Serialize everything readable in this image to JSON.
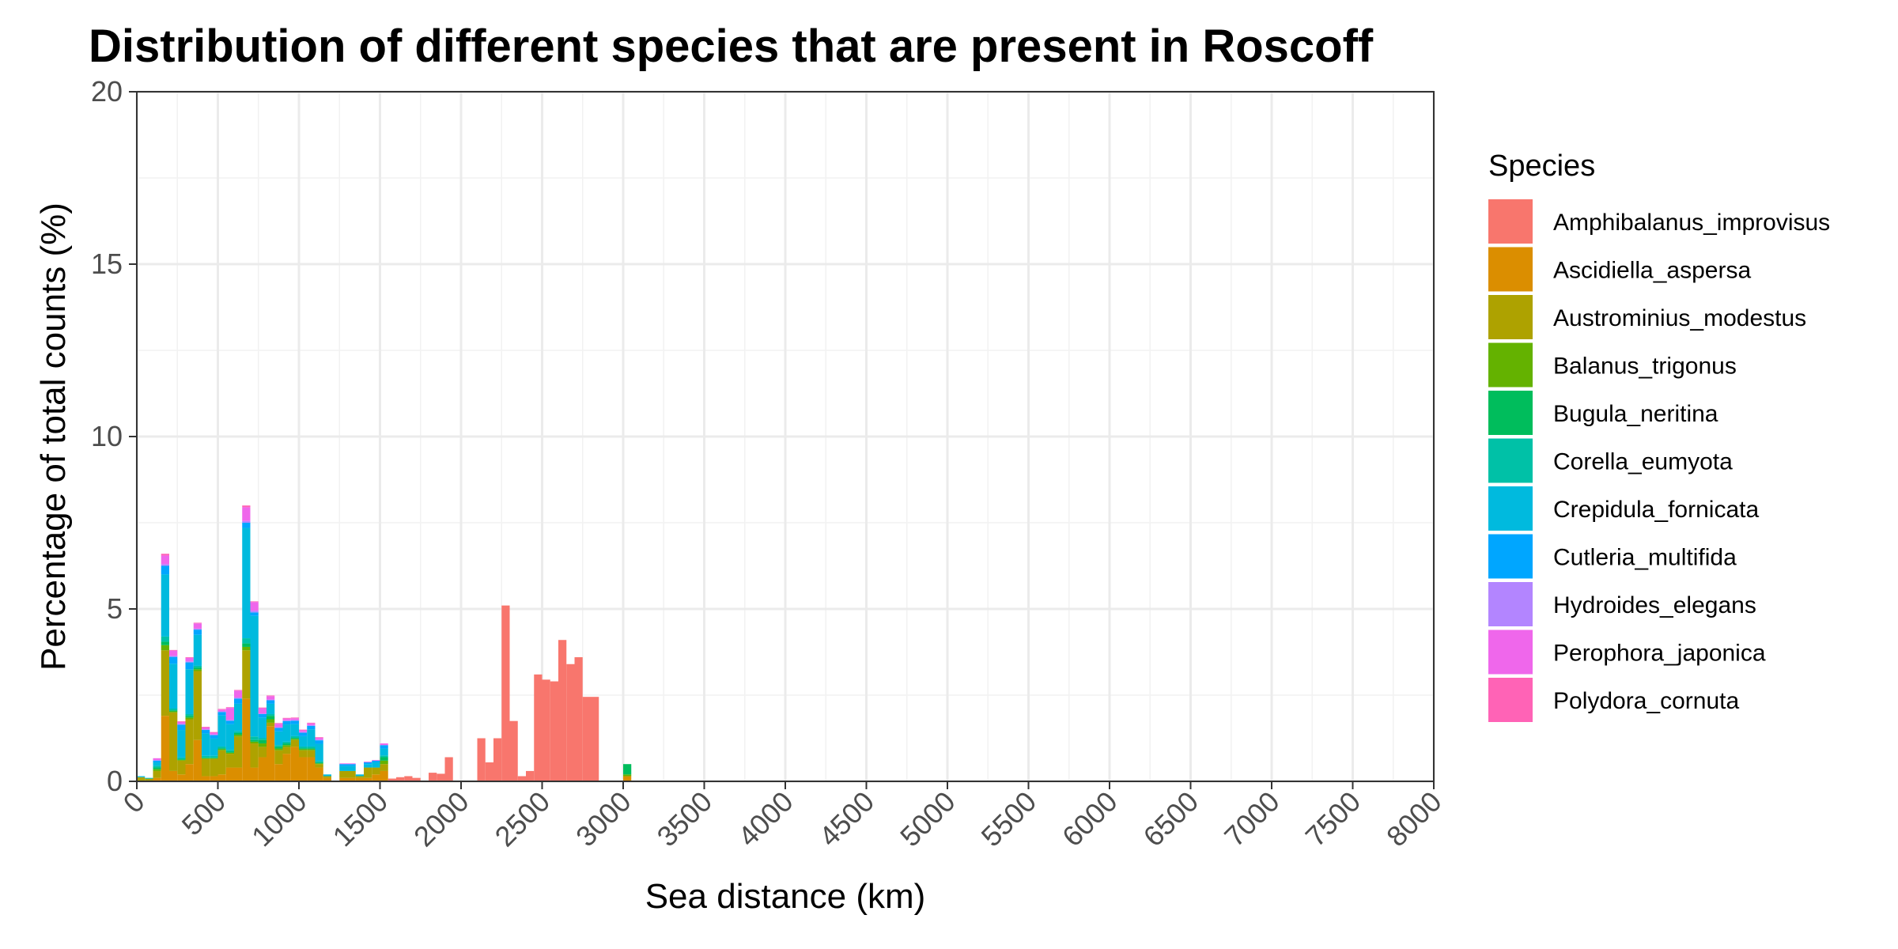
{
  "chart_data": {
    "type": "bar",
    "stacked": true,
    "title": "Distribution of different species that are present in Roscoff",
    "xlabel": "Sea distance (km)",
    "ylabel": "Percentage of total counts (%)",
    "xlim": [
      0,
      8000
    ],
    "ylim": [
      0,
      20
    ],
    "bin_width": 50,
    "grid": true,
    "legend_title": "Species",
    "legend_position": "right",
    "x_ticks": [
      "0",
      "500",
      "1000",
      "1500",
      "2000",
      "2500",
      "3000",
      "3500",
      "4000",
      "4500",
      "5000",
      "5500",
      "6000",
      "6500",
      "7000",
      "7500",
      "8000"
    ],
    "y_ticks": [
      "0",
      "5",
      "10",
      "15",
      "20"
    ],
    "x": [
      25,
      75,
      125,
      175,
      225,
      275,
      325,
      375,
      425,
      475,
      525,
      575,
      625,
      675,
      725,
      775,
      825,
      875,
      925,
      975,
      1025,
      1075,
      1125,
      1175,
      1275,
      1325,
      1375,
      1425,
      1475,
      1525,
      1575,
      1625,
      1675,
      1725,
      1825,
      1875,
      1925,
      2125,
      2175,
      2225,
      2275,
      2325,
      2375,
      2425,
      2475,
      2525,
      2575,
      2625,
      2675,
      2725,
      2775,
      2825,
      3025
    ],
    "series": [
      {
        "name": "Amphibalanus_improvisus",
        "color": "#F8766D",
        "values": [
          0,
          0,
          0,
          0,
          0,
          0,
          0,
          0,
          0,
          0,
          0,
          0,
          0,
          0,
          0,
          0,
          0,
          0,
          0,
          0,
          0,
          0,
          0,
          0,
          0,
          0,
          0,
          0,
          0,
          0,
          0.08,
          0.12,
          0.15,
          0.1,
          0.25,
          0.22,
          0.7,
          1.25,
          0.55,
          1.25,
          5.1,
          1.75,
          0.15,
          0.3,
          3.1,
          2.95,
          2.9,
          4.1,
          3.4,
          3.6,
          2.45,
          2.45,
          0
        ]
      },
      {
        "name": "Ascidiella_aspersa",
        "color": "#DB8E00",
        "values": [
          0.02,
          0.02,
          0.1,
          1.9,
          0.3,
          0.2,
          0.5,
          1.2,
          0.15,
          0.15,
          0.2,
          0.4,
          0.4,
          2.4,
          0.4,
          0.7,
          1.6,
          0.5,
          0.8,
          1.0,
          0.7,
          0.7,
          0.4,
          0.1,
          0.1,
          0.1,
          0.1,
          0.1,
          0.2,
          0.3,
          0,
          0,
          0,
          0,
          0,
          0,
          0,
          0,
          0,
          0,
          0,
          0,
          0,
          0,
          0,
          0,
          0,
          0,
          0,
          0,
          0,
          0,
          0.15
        ]
      },
      {
        "name": "Austrominius_modestus",
        "color": "#AEA200",
        "values": [
          0.1,
          0.05,
          0.2,
          1.9,
          1.7,
          0.4,
          1.3,
          2.0,
          0.5,
          0.5,
          0.7,
          0.4,
          0.9,
          1.4,
          0.7,
          0.3,
          0.1,
          0.4,
          0.2,
          0.2,
          0.2,
          0.2,
          0.1,
          0.05,
          0.2,
          0.2,
          0.05,
          0.3,
          0.2,
          0.2,
          0,
          0,
          0,
          0,
          0,
          0,
          0,
          0,
          0,
          0,
          0,
          0,
          0,
          0,
          0,
          0,
          0,
          0,
          0,
          0,
          0,
          0,
          0
        ]
      },
      {
        "name": "Balanus_trigonus",
        "color": "#64B200",
        "values": [
          0,
          0.01,
          0.05,
          0.15,
          0.03,
          0.02,
          0.05,
          0.05,
          0.02,
          0.02,
          0.03,
          0.03,
          0.05,
          0.1,
          0.05,
          0.1,
          0.1,
          0.05,
          0.05,
          0.03,
          0.03,
          0.03,
          0.02,
          0,
          0,
          0,
          0,
          0,
          0,
          0.1,
          0,
          0,
          0,
          0,
          0,
          0,
          0,
          0,
          0,
          0,
          0,
          0,
          0,
          0,
          0,
          0,
          0,
          0,
          0,
          0,
          0,
          0,
          0.05
        ]
      },
      {
        "name": "Bugula_neritina",
        "color": "#00BD5C",
        "values": [
          0,
          0,
          0.05,
          0.1,
          0.03,
          0.02,
          0.05,
          0.05,
          0.02,
          0.02,
          0.03,
          0.03,
          0.05,
          0.1,
          0.05,
          0.1,
          0.1,
          0.05,
          0.05,
          0.03,
          0.03,
          0.03,
          0.02,
          0,
          0,
          0,
          0,
          0,
          0,
          0.1,
          0,
          0,
          0,
          0,
          0,
          0,
          0,
          0,
          0,
          0,
          0,
          0,
          0,
          0,
          0,
          0,
          0,
          0,
          0,
          0,
          0,
          0,
          0.3
        ]
      },
      {
        "name": "Corella_eumyota",
        "color": "#00C1A7",
        "values": [
          0,
          0,
          0.05,
          0.15,
          0.05,
          0.05,
          0.05,
          0.05,
          0.05,
          0.05,
          0.05,
          0.05,
          0.05,
          0.15,
          0.1,
          0.05,
          0.05,
          0.05,
          0.05,
          0.05,
          0.05,
          0.05,
          0.05,
          0,
          0,
          0,
          0,
          0,
          0,
          0.05,
          0,
          0,
          0,
          0,
          0,
          0,
          0,
          0,
          0,
          0,
          0,
          0,
          0,
          0,
          0,
          0,
          0,
          0,
          0,
          0,
          0,
          0,
          0
        ]
      },
      {
        "name": "Crepidula_fornicata",
        "color": "#00BADE",
        "values": [
          0.03,
          0.02,
          0.1,
          1.8,
          1.3,
          0.8,
          1.3,
          0.9,
          0.65,
          0.5,
          0.9,
          0.75,
          0.8,
          3.2,
          3.5,
          0.6,
          0.3,
          0.4,
          0.5,
          0.35,
          0.3,
          0.5,
          0.5,
          0.05,
          0.15,
          0.15,
          0.05,
          0.1,
          0.15,
          0.2,
          0,
          0,
          0,
          0,
          0,
          0,
          0,
          0,
          0,
          0,
          0,
          0,
          0,
          0,
          0,
          0,
          0,
          0,
          0,
          0,
          0,
          0,
          0
        ]
      },
      {
        "name": "Cutleria_multifida",
        "color": "#00A6FF",
        "values": [
          0,
          0,
          0.05,
          0.25,
          0.2,
          0.15,
          0.2,
          0.15,
          0.1,
          0.1,
          0.1,
          0.1,
          0.15,
          0.15,
          0.1,
          0.1,
          0.1,
          0.1,
          0.1,
          0.1,
          0.1,
          0.1,
          0.1,
          0,
          0.05,
          0.05,
          0,
          0.05,
          0.05,
          0.1,
          0,
          0,
          0,
          0,
          0,
          0,
          0,
          0,
          0,
          0,
          0,
          0,
          0,
          0,
          0,
          0,
          0,
          0,
          0,
          0,
          0,
          0,
          0
        ]
      },
      {
        "name": "Hydroides_elegans",
        "color": "#B385FF",
        "values": [
          0,
          0,
          0.02,
          0.05,
          0.03,
          0.03,
          0.03,
          0.03,
          0.02,
          0.02,
          0.02,
          0.02,
          0.03,
          0.05,
          0.05,
          0.02,
          0.02,
          0.02,
          0.02,
          0.02,
          0.02,
          0.02,
          0.02,
          0,
          0,
          0,
          0,
          0,
          0,
          0,
          0,
          0,
          0,
          0,
          0,
          0,
          0,
          0,
          0,
          0,
          0,
          0,
          0,
          0,
          0,
          0,
          0,
          0,
          0,
          0,
          0,
          0,
          0
        ]
      },
      {
        "name": "Perophora_japonica",
        "color": "#EF67EB",
        "values": [
          0,
          0,
          0.05,
          0.25,
          0.15,
          0.05,
          0.1,
          0.15,
          0.05,
          0.05,
          0.05,
          0.35,
          0.2,
          0.4,
          0.25,
          0.15,
          0.1,
          0.1,
          0.05,
          0.05,
          0.05,
          0.05,
          0.05,
          0,
          0.02,
          0.02,
          0,
          0.02,
          0.02,
          0.05,
          0,
          0,
          0,
          0,
          0,
          0,
          0,
          0,
          0,
          0,
          0,
          0,
          0,
          0,
          0,
          0,
          0,
          0,
          0,
          0,
          0,
          0,
          0
        ]
      },
      {
        "name": "Polydora_cornuta",
        "color": "#FF63B6",
        "values": [
          0,
          0,
          0,
          0.05,
          0.02,
          0.02,
          0.02,
          0.02,
          0.02,
          0.02,
          0.02,
          0.02,
          0.02,
          0.05,
          0.02,
          0.02,
          0.02,
          0.02,
          0.02,
          0.02,
          0.02,
          0.02,
          0.02,
          0,
          0,
          0,
          0,
          0,
          0,
          0,
          0,
          0,
          0,
          0,
          0,
          0,
          0,
          0,
          0,
          0,
          0,
          0,
          0,
          0,
          0,
          0,
          0,
          0,
          0,
          0,
          0,
          0,
          0
        ]
      }
    ]
  }
}
